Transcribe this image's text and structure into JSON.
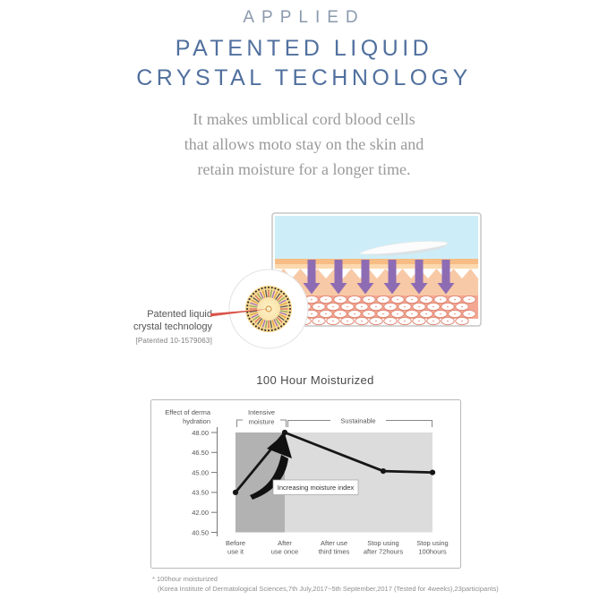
{
  "header": {
    "kicker": "APPLIED",
    "title_line1": "PATENTED LIQUID",
    "title_line2": "CRYSTAL TECHNOLOGY"
  },
  "intro": {
    "line1": "It makes umblical cord blood cells",
    "line2": "that allows moto stay on the skin and",
    "line3": "retain moisture for a longer time."
  },
  "diagram": {
    "label_line1": "Patented liquid",
    "label_line2": "crystal technology",
    "patent": "[Patented 10-1579063]",
    "icons": [
      "skin-cross-section-icon",
      "cream-swoosh-icon",
      "absorption-arrows-icon",
      "liquid-crystal-micelle-icon"
    ]
  },
  "chart_data": {
    "type": "line",
    "title": "100 Hour Moisturized",
    "ylabel": "Effect of derma hydration",
    "ylabel_lines": [
      "Effect of derma",
      "hydration"
    ],
    "categories": [
      [
        "Before",
        "use it"
      ],
      [
        "After",
        "use once"
      ],
      [
        "After use",
        "third times"
      ],
      [
        "Stop using",
        "after 72hours"
      ],
      [
        "Stop using",
        "100hours"
      ]
    ],
    "values": [
      43.5,
      48.0,
      null,
      45.1,
      45.0
    ],
    "yticks": [
      "48.00",
      "46.50",
      "45.00",
      "43.50",
      "42.00",
      "40.50"
    ],
    "ytick_values": [
      48,
      46.5,
      45,
      43.5,
      42,
      40.5
    ],
    "ylim": [
      40.5,
      48
    ],
    "grid": false,
    "legend": false,
    "line_color": "#161616",
    "regions": [
      {
        "name": "intensive-moisture",
        "from": 0,
        "to": 1,
        "color": "#b2b2b2"
      },
      {
        "name": "sustainable",
        "from": 1,
        "to": 4,
        "color": "#dcdcdc"
      }
    ],
    "annotations": {
      "intensive_line1": "Intensive",
      "intensive_line2": "moisture",
      "sustainable": "Sustainable",
      "arrow_label": "Increasing moisture index"
    }
  },
  "footnote": {
    "line1": "* 100hour moisturized",
    "line2": "(Korea Institute of Dermatological Sciences,7th July,2017~5th September,2017 (Tested for 4weeks),23participants)"
  },
  "colors": {
    "kicker_blue": "#8b9aae",
    "title_blue": "#51709e",
    "intro_gray": "#9a9a9a",
    "sky_blue": "#cdeef8",
    "skin_orange": "#f7bd85",
    "skin_orange_light": "#fcd9ae",
    "skin_peach": "#f8c9a6",
    "cells_bg": "#f4a893",
    "cell_outline": "#e08875",
    "arrow_purple": "#8e6cb4",
    "pointer_red": "#d9544a",
    "micelle_core": "#f6d488",
    "region_dark": "#b2b2b2",
    "region_light": "#dcdcdc"
  }
}
